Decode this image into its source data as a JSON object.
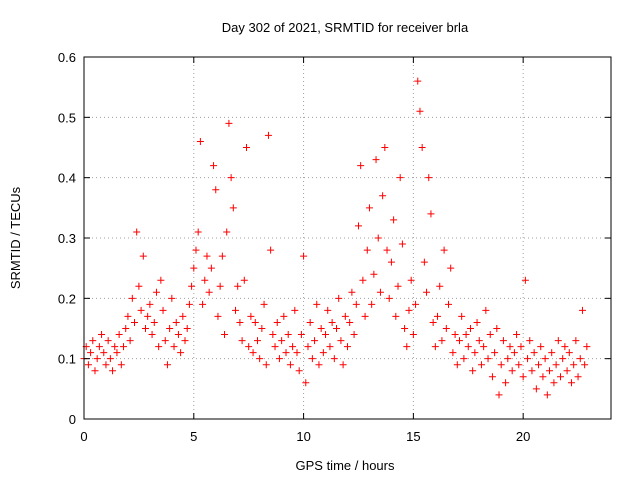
{
  "chart_data": {
    "type": "scatter",
    "title": "Day 302 of 2021, SRMTID for receiver brla",
    "xlabel": "GPS time / hours",
    "ylabel": "SRMTID / TECUs",
    "xlim": [
      0,
      24
    ],
    "ylim": [
      0,
      0.6
    ],
    "x_ticks": [
      0,
      5,
      10,
      15,
      20
    ],
    "x_tick_labels": [
      "0",
      "5",
      "10",
      "15",
      "20"
    ],
    "y_ticks": [
      0,
      0.1,
      0.2,
      0.3,
      0.4,
      0.5,
      0.6
    ],
    "y_tick_labels": [
      "0",
      "0.1",
      "0.2",
      "0.3",
      "0.4",
      "0.5",
      "0.6"
    ],
    "grid": true,
    "marker": "+",
    "color": "#ff0000",
    "series": [
      {
        "name": "SRMTID",
        "points": [
          [
            0.0,
            0.1
          ],
          [
            0.1,
            0.12
          ],
          [
            0.2,
            0.09
          ],
          [
            0.3,
            0.11
          ],
          [
            0.4,
            0.13
          ],
          [
            0.5,
            0.08
          ],
          [
            0.6,
            0.1
          ],
          [
            0.7,
            0.12
          ],
          [
            0.8,
            0.14
          ],
          [
            0.9,
            0.11
          ],
          [
            1.0,
            0.09
          ],
          [
            1.1,
            0.13
          ],
          [
            1.2,
            0.1
          ],
          [
            1.3,
            0.08
          ],
          [
            1.4,
            0.12
          ],
          [
            1.5,
            0.11
          ],
          [
            1.6,
            0.14
          ],
          [
            1.7,
            0.09
          ],
          [
            1.8,
            0.12
          ],
          [
            1.9,
            0.15
          ],
          [
            2.0,
            0.17
          ],
          [
            2.1,
            0.13
          ],
          [
            2.2,
            0.2
          ],
          [
            2.3,
            0.16
          ],
          [
            2.4,
            0.31
          ],
          [
            2.5,
            0.22
          ],
          [
            2.6,
            0.18
          ],
          [
            2.7,
            0.27
          ],
          [
            2.8,
            0.15
          ],
          [
            2.9,
            0.17
          ],
          [
            3.0,
            0.19
          ],
          [
            3.1,
            0.14
          ],
          [
            3.2,
            0.16
          ],
          [
            3.3,
            0.21
          ],
          [
            3.4,
            0.12
          ],
          [
            3.5,
            0.23
          ],
          [
            3.6,
            0.18
          ],
          [
            3.7,
            0.13
          ],
          [
            3.8,
            0.09
          ],
          [
            3.9,
            0.15
          ],
          [
            4.0,
            0.2
          ],
          [
            4.1,
            0.12
          ],
          [
            4.2,
            0.16
          ],
          [
            4.3,
            0.14
          ],
          [
            4.4,
            0.11
          ],
          [
            4.5,
            0.17
          ],
          [
            4.6,
            0.13
          ],
          [
            4.7,
            0.15
          ],
          [
            4.8,
            0.19
          ],
          [
            4.9,
            0.22
          ],
          [
            5.0,
            0.25
          ],
          [
            5.1,
            0.28
          ],
          [
            5.2,
            0.31
          ],
          [
            5.3,
            0.46
          ],
          [
            5.4,
            0.19
          ],
          [
            5.5,
            0.23
          ],
          [
            5.6,
            0.27
          ],
          [
            5.7,
            0.21
          ],
          [
            5.8,
            0.25
          ],
          [
            5.9,
            0.42
          ],
          [
            6.0,
            0.38
          ],
          [
            6.1,
            0.17
          ],
          [
            6.2,
            0.22
          ],
          [
            6.3,
            0.27
          ],
          [
            6.4,
            0.14
          ],
          [
            6.5,
            0.31
          ],
          [
            6.6,
            0.49
          ],
          [
            6.7,
            0.4
          ],
          [
            6.8,
            0.35
          ],
          [
            6.9,
            0.18
          ],
          [
            7.0,
            0.22
          ],
          [
            7.1,
            0.16
          ],
          [
            7.2,
            0.13
          ],
          [
            7.3,
            0.23
          ],
          [
            7.4,
            0.45
          ],
          [
            7.5,
            0.12
          ],
          [
            7.6,
            0.17
          ],
          [
            7.7,
            0.11
          ],
          [
            7.8,
            0.16
          ],
          [
            7.9,
            0.13
          ],
          [
            8.0,
            0.1
          ],
          [
            8.1,
            0.15
          ],
          [
            8.2,
            0.19
          ],
          [
            8.3,
            0.09
          ],
          [
            8.4,
            0.47
          ],
          [
            8.5,
            0.28
          ],
          [
            8.6,
            0.14
          ],
          [
            8.7,
            0.12
          ],
          [
            8.8,
            0.16
          ],
          [
            8.9,
            0.1
          ],
          [
            9.0,
            0.13
          ],
          [
            9.1,
            0.17
          ],
          [
            9.2,
            0.11
          ],
          [
            9.3,
            0.14
          ],
          [
            9.4,
            0.09
          ],
          [
            9.5,
            0.12
          ],
          [
            9.6,
            0.18
          ],
          [
            9.7,
            0.11
          ],
          [
            9.8,
            0.08
          ],
          [
            9.9,
            0.14
          ],
          [
            10.0,
            0.27
          ],
          [
            10.1,
            0.06
          ],
          [
            10.2,
            0.12
          ],
          [
            10.3,
            0.16
          ],
          [
            10.4,
            0.1
          ],
          [
            10.5,
            0.13
          ],
          [
            10.6,
            0.19
          ],
          [
            10.7,
            0.09
          ],
          [
            10.8,
            0.15
          ],
          [
            10.9,
            0.11
          ],
          [
            11.0,
            0.14
          ],
          [
            11.1,
            0.18
          ],
          [
            11.2,
            0.12
          ],
          [
            11.3,
            0.16
          ],
          [
            11.4,
            0.1
          ],
          [
            11.5,
            0.15
          ],
          [
            11.6,
            0.2
          ],
          [
            11.7,
            0.13
          ],
          [
            11.8,
            0.09
          ],
          [
            11.9,
            0.17
          ],
          [
            12.0,
            0.12
          ],
          [
            12.1,
            0.16
          ],
          [
            12.2,
            0.21
          ],
          [
            12.3,
            0.14
          ],
          [
            12.4,
            0.19
          ],
          [
            12.5,
            0.32
          ],
          [
            12.6,
            0.42
          ],
          [
            12.7,
            0.23
          ],
          [
            12.8,
            0.17
          ],
          [
            12.9,
            0.28
          ],
          [
            13.0,
            0.35
          ],
          [
            13.1,
            0.19
          ],
          [
            13.2,
            0.24
          ],
          [
            13.3,
            0.43
          ],
          [
            13.4,
            0.3
          ],
          [
            13.5,
            0.21
          ],
          [
            13.6,
            0.37
          ],
          [
            13.7,
            0.45
          ],
          [
            13.8,
            0.28
          ],
          [
            13.9,
            0.2
          ],
          [
            14.0,
            0.26
          ],
          [
            14.1,
            0.33
          ],
          [
            14.2,
            0.17
          ],
          [
            14.3,
            0.22
          ],
          [
            14.4,
            0.4
          ],
          [
            14.5,
            0.29
          ],
          [
            14.6,
            0.15
          ],
          [
            14.7,
            0.12
          ],
          [
            14.8,
            0.18
          ],
          [
            14.9,
            0.23
          ],
          [
            15.0,
            0.14
          ],
          [
            15.1,
            0.19
          ],
          [
            15.2,
            0.56
          ],
          [
            15.3,
            0.51
          ],
          [
            15.4,
            0.45
          ],
          [
            15.5,
            0.26
          ],
          [
            15.6,
            0.21
          ],
          [
            15.7,
            0.4
          ],
          [
            15.8,
            0.34
          ],
          [
            15.9,
            0.16
          ],
          [
            16.0,
            0.12
          ],
          [
            16.1,
            0.17
          ],
          [
            16.2,
            0.22
          ],
          [
            16.3,
            0.13
          ],
          [
            16.4,
            0.28
          ],
          [
            16.5,
            0.15
          ],
          [
            16.6,
            0.19
          ],
          [
            16.7,
            0.25
          ],
          [
            16.8,
            0.11
          ],
          [
            16.9,
            0.14
          ],
          [
            17.0,
            0.09
          ],
          [
            17.1,
            0.13
          ],
          [
            17.2,
            0.17
          ],
          [
            17.3,
            0.1
          ],
          [
            17.4,
            0.14
          ],
          [
            17.5,
            0.12
          ],
          [
            17.6,
            0.15
          ],
          [
            17.7,
            0.08
          ],
          [
            17.8,
            0.11
          ],
          [
            17.9,
            0.16
          ],
          [
            18.0,
            0.13
          ],
          [
            18.1,
            0.09
          ],
          [
            18.2,
            0.12
          ],
          [
            18.3,
            0.18
          ],
          [
            18.4,
            0.1
          ],
          [
            18.5,
            0.14
          ],
          [
            18.6,
            0.07
          ],
          [
            18.7,
            0.11
          ],
          [
            18.8,
            0.15
          ],
          [
            18.9,
            0.04
          ],
          [
            19.0,
            0.09
          ],
          [
            19.1,
            0.13
          ],
          [
            19.2,
            0.06
          ],
          [
            19.3,
            0.1
          ],
          [
            19.4,
            0.12
          ],
          [
            19.5,
            0.08
          ],
          [
            19.6,
            0.11
          ],
          [
            19.7,
            0.14
          ],
          [
            19.8,
            0.09
          ],
          [
            19.9,
            0.12
          ],
          [
            20.0,
            0.07
          ],
          [
            20.1,
            0.23
          ],
          [
            20.2,
            0.1
          ],
          [
            20.3,
            0.13
          ],
          [
            20.4,
            0.08
          ],
          [
            20.5,
            0.11
          ],
          [
            20.6,
            0.05
          ],
          [
            20.7,
            0.09
          ],
          [
            20.8,
            0.12
          ],
          [
            20.9,
            0.07
          ],
          [
            21.0,
            0.1
          ],
          [
            21.1,
            0.04
          ],
          [
            21.2,
            0.08
          ],
          [
            21.3,
            0.11
          ],
          [
            21.4,
            0.06
          ],
          [
            21.5,
            0.09
          ],
          [
            21.6,
            0.13
          ],
          [
            21.7,
            0.07
          ],
          [
            21.8,
            0.1
          ],
          [
            21.9,
            0.12
          ],
          [
            22.0,
            0.08
          ],
          [
            22.1,
            0.11
          ],
          [
            22.2,
            0.06
          ],
          [
            22.3,
            0.09
          ],
          [
            22.4,
            0.13
          ],
          [
            22.5,
            0.07
          ],
          [
            22.6,
            0.1
          ],
          [
            22.7,
            0.18
          ],
          [
            22.8,
            0.09
          ],
          [
            22.9,
            0.12
          ]
        ]
      }
    ]
  }
}
